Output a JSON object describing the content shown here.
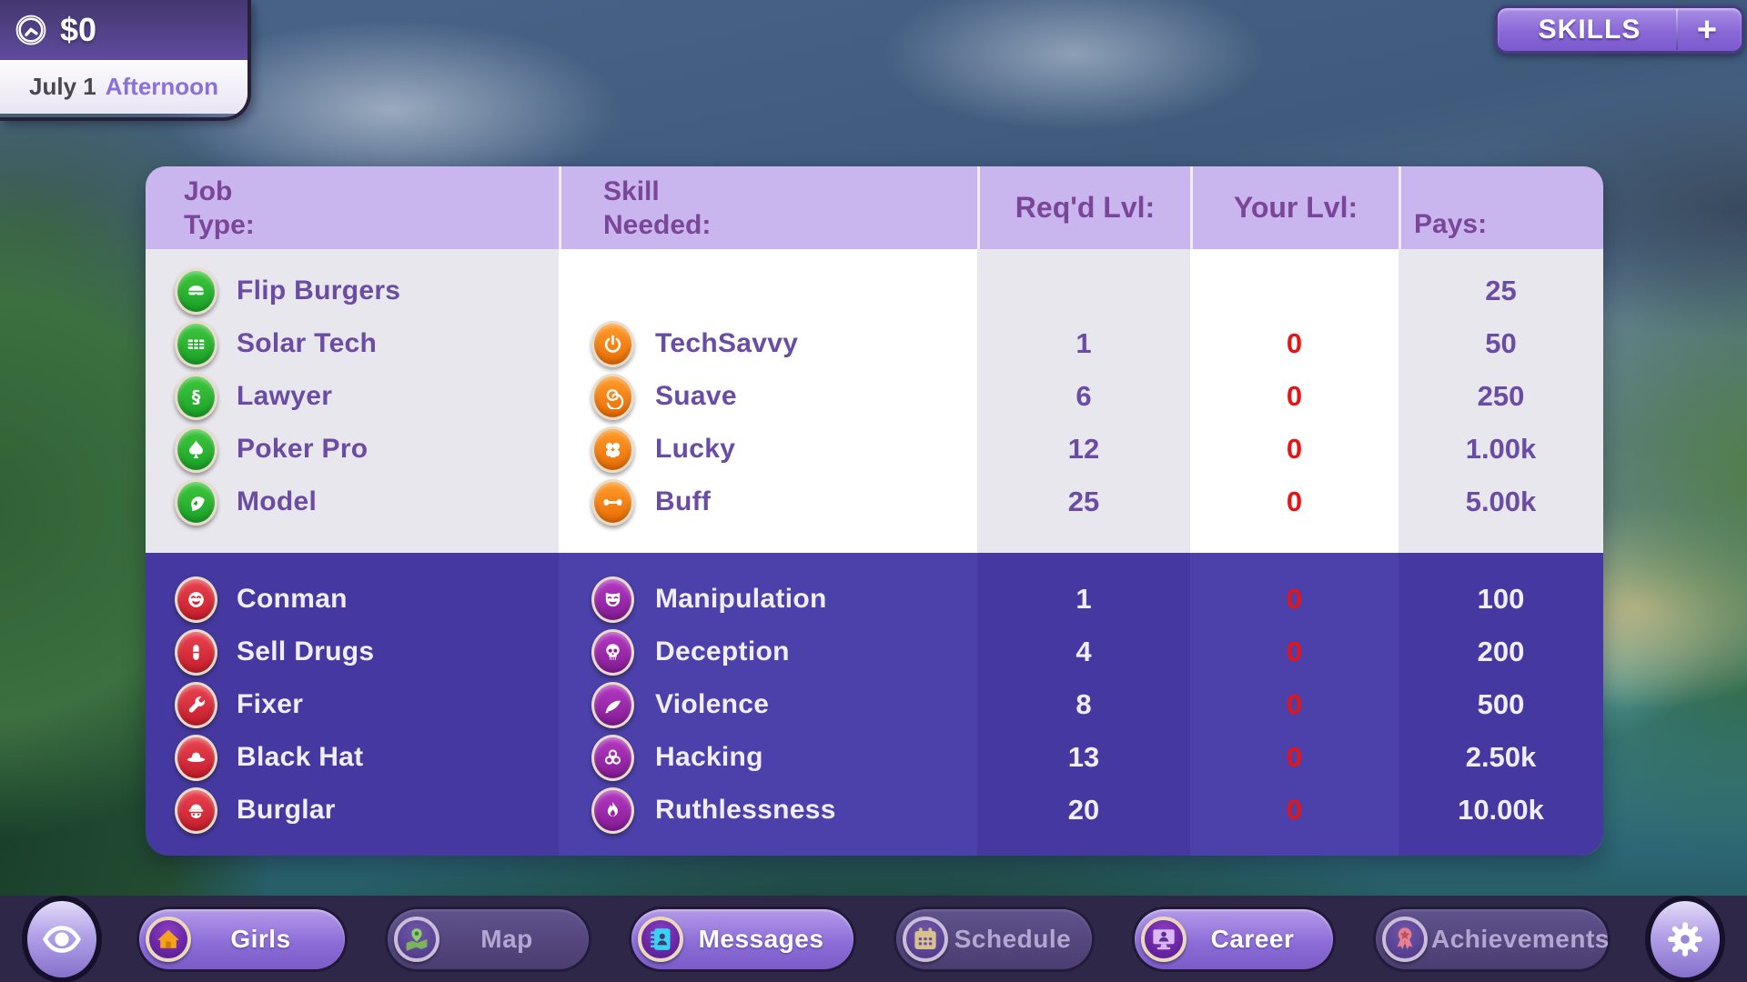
{
  "hud": {
    "money": "$0",
    "date": "July 1",
    "time_of_day": "Afternoon",
    "clock_icon": "clock-icon",
    "skills_label": "SKILLS",
    "skills_plus": "+"
  },
  "table": {
    "header": {
      "job_line1": "Job",
      "job_line2": "Type:",
      "skill_line1": "Skill",
      "skill_line2": "Needed:",
      "reqd": "Req'd Lvl:",
      "your": "Your Lvl:",
      "pays": "Pays:"
    },
    "sections": [
      {
        "id": "legit",
        "theme": "light",
        "rows": [
          {
            "job": "Flip Burgers",
            "job_icon": "burger-icon",
            "skill": "",
            "skill_icon": "",
            "reqd": "",
            "your": "",
            "pays": "25"
          },
          {
            "job": "Solar Tech",
            "job_icon": "solar-panel-icon",
            "skill": "TechSavvy",
            "skill_icon": "power-icon",
            "reqd": "1",
            "your": "0",
            "pays": "50"
          },
          {
            "job": "Lawyer",
            "job_icon": "section-sign-icon",
            "skill": "Suave",
            "skill_icon": "rose-icon",
            "reqd": "6",
            "your": "0",
            "pays": "250"
          },
          {
            "job": "Poker Pro",
            "job_icon": "spade-icon",
            "skill": "Lucky",
            "skill_icon": "clover-icon",
            "reqd": "12",
            "your": "0",
            "pays": "1.00k"
          },
          {
            "job": "Model",
            "job_icon": "model-pose-icon",
            "skill": "Buff",
            "skill_icon": "dumbbell-icon",
            "reqd": "25",
            "your": "0",
            "pays": "5.00k"
          }
        ]
      },
      {
        "id": "crime",
        "theme": "dark",
        "rows": [
          {
            "job": "Conman",
            "job_icon": "conman-face-icon",
            "skill": "Manipulation",
            "skill_icon": "theater-mask-icon",
            "reqd": "1",
            "your": "0",
            "pays": "100"
          },
          {
            "job": "Sell Drugs",
            "job_icon": "pill-icon",
            "skill": "Deception",
            "skill_icon": "skull-icon",
            "reqd": "4",
            "your": "0",
            "pays": "200"
          },
          {
            "job": "Fixer",
            "job_icon": "wrench-icon",
            "skill": "Violence",
            "skill_icon": "knife-icon",
            "reqd": "8",
            "your": "0",
            "pays": "500"
          },
          {
            "job": "Black Hat",
            "job_icon": "fedora-icon",
            "skill": "Hacking",
            "skill_icon": "biohazard-icon",
            "reqd": "13",
            "your": "0",
            "pays": "2.50k"
          },
          {
            "job": "Burglar",
            "job_icon": "burglar-icon",
            "skill": "Ruthlessness",
            "skill_icon": "flame-icon",
            "reqd": "20",
            "your": "0",
            "pays": "10.00k"
          }
        ]
      }
    ]
  },
  "nav": {
    "eye_icon": "eye-icon",
    "settings_icon": "gear-icon",
    "items": [
      {
        "label": "Girls",
        "icon": "home-icon",
        "active": true
      },
      {
        "label": "Map",
        "icon": "map-pin-icon",
        "active": false
      },
      {
        "label": "Messages",
        "icon": "address-book-icon",
        "active": true
      },
      {
        "label": "Schedule",
        "icon": "calendar-icon",
        "active": false
      },
      {
        "label": "Career",
        "icon": "monitor-icon",
        "active": true
      },
      {
        "label": "Achievements",
        "icon": "medal-icon",
        "active": false
      }
    ]
  },
  "colors": {
    "table_header_bg": "#c9b6ee",
    "header_text_purple": "#7b4699",
    "light_row_bg": "#e9e7ee",
    "dark_row_bg": "#4539a1",
    "dark_row_alt_bg": "#4c40ab",
    "text_purple": "#6b4ca4",
    "level_zero_red": "#e81414",
    "badge_green": "#2db534",
    "badge_orange": "#f58312",
    "badge_red": "#d6202f",
    "badge_magenta": "#9b27a5",
    "nav_bar_bg": "#2e2748",
    "active_pill_purple": "#8d6ed8"
  }
}
